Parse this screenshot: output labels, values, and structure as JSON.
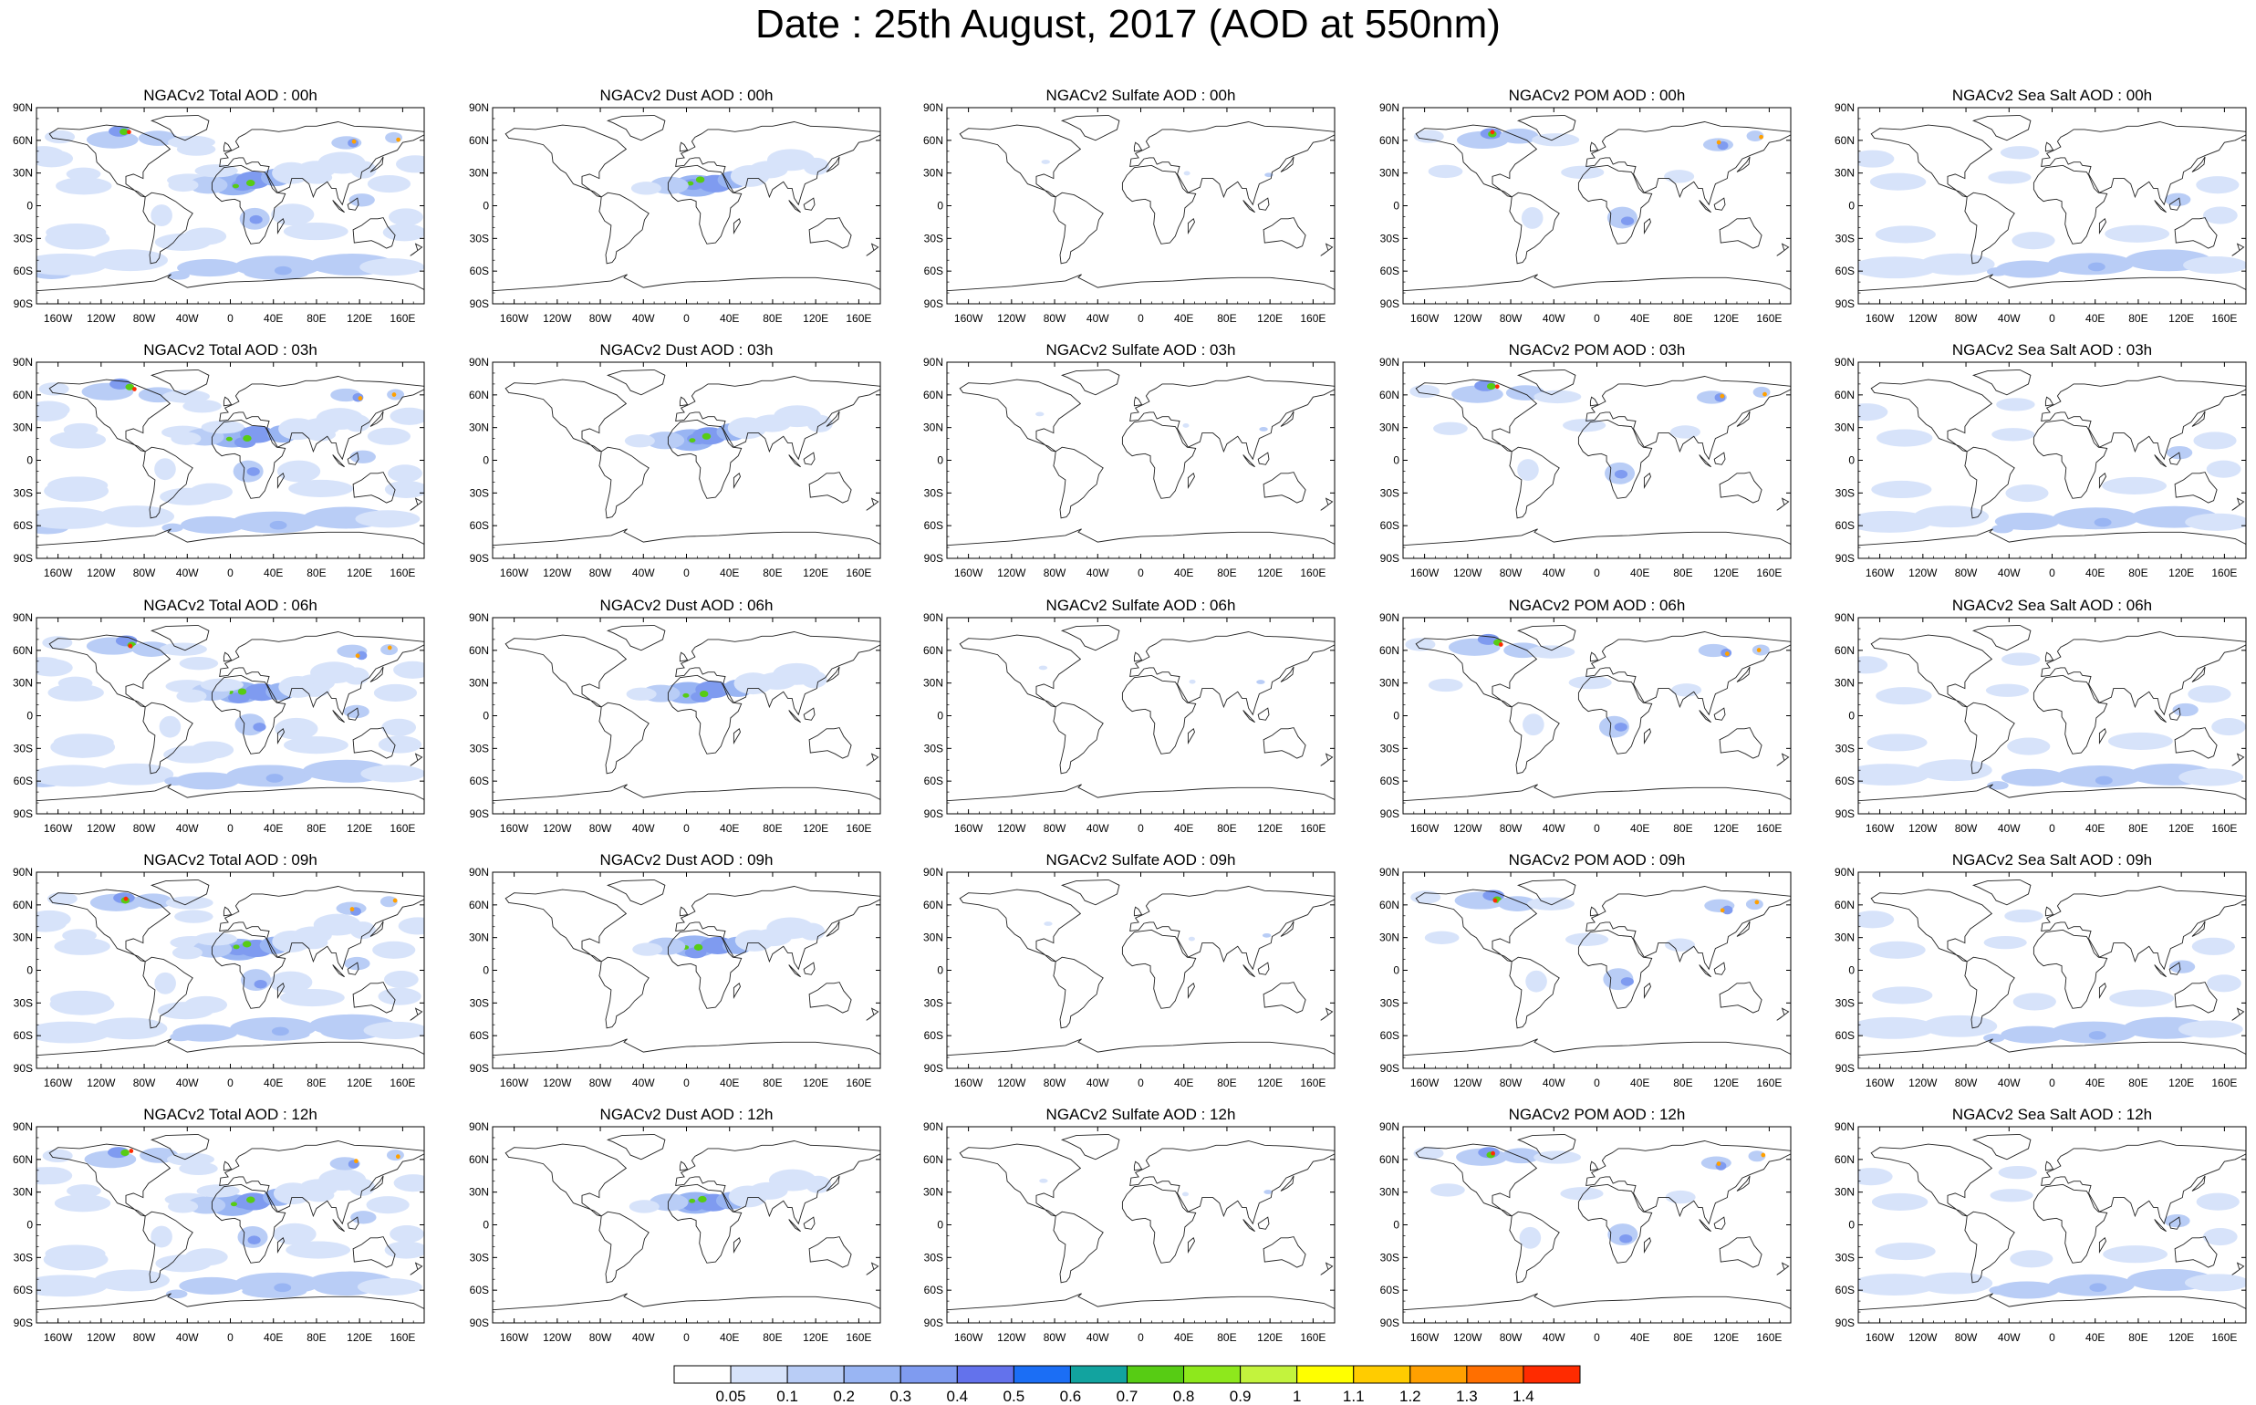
{
  "title": "Date : 25th August, 2017 (AOD at 550nm)",
  "lat_ticks": [
    "90N",
    "60N",
    "30N",
    "0",
    "30S",
    "60S",
    "90S"
  ],
  "lon_ticks": [
    "160W",
    "120W",
    "80W",
    "40W",
    "0",
    "40E",
    "80E",
    "120E",
    "160E"
  ],
  "panels": [
    [
      "NGACv2 Total AOD : 00h",
      "NGACv2 Dust AOD : 00h",
      "NGACv2 Sulfate AOD : 00h",
      "NGACv2 POM AOD : 00h",
      "NGACv2 Sea Salt AOD : 00h"
    ],
    [
      "NGACv2 Total AOD : 03h",
      "NGACv2 Dust AOD : 03h",
      "NGACv2 Sulfate AOD : 03h",
      "NGACv2 POM AOD : 03h",
      "NGACv2 Sea Salt AOD : 03h"
    ],
    [
      "NGACv2 Total AOD : 06h",
      "NGACv2 Dust AOD : 06h",
      "NGACv2 Sulfate AOD : 06h",
      "NGACv2 POM AOD : 06h",
      "NGACv2 Sea Salt AOD : 06h"
    ],
    [
      "NGACv2 Total AOD : 09h",
      "NGACv2 Dust AOD : 09h",
      "NGACv2 Sulfate AOD : 09h",
      "NGACv2 POM AOD : 09h",
      "NGACv2 Sea Salt  AOD : 09h"
    ],
    [
      "NGACv2 Total AOD : 12h",
      "NGACv2 Dust AOD : 12h",
      "NGACv2 Sulfate AOD : 12h",
      "NGACv2 POM  AOD : 12h",
      "NGACv2 Sea Salt  AOD : 12h"
    ]
  ],
  "colorbar": {
    "colors": [
      "#ffffff",
      "#d7e3fa",
      "#b9cdf6",
      "#99b5f3",
      "#7f9bf0",
      "#6372ec",
      "#1b6ef5",
      "#12a39f",
      "#57cc14",
      "#8ee81c",
      "#c3f33d",
      "#ffff00",
      "#ffcc00",
      "#ffa000",
      "#ff6f00",
      "#ff2b00"
    ],
    "labels": [
      "0.05",
      "0.1",
      "0.2",
      "0.3",
      "0.4",
      "0.5",
      "0.6",
      "0.7",
      "0.8",
      "0.9",
      "1",
      "1.1",
      "1.2",
      "1.3",
      "1.4"
    ]
  },
  "map_fill_colors": {
    "light": "#d7e3fa",
    "medium": "#b9cdf6",
    "strong": "#99b5f3",
    "deep": "#7f9bf0",
    "dust_green": "#57cc14",
    "hot_red": "#ff2b00",
    "hot_orange": "#ffa000"
  }
}
